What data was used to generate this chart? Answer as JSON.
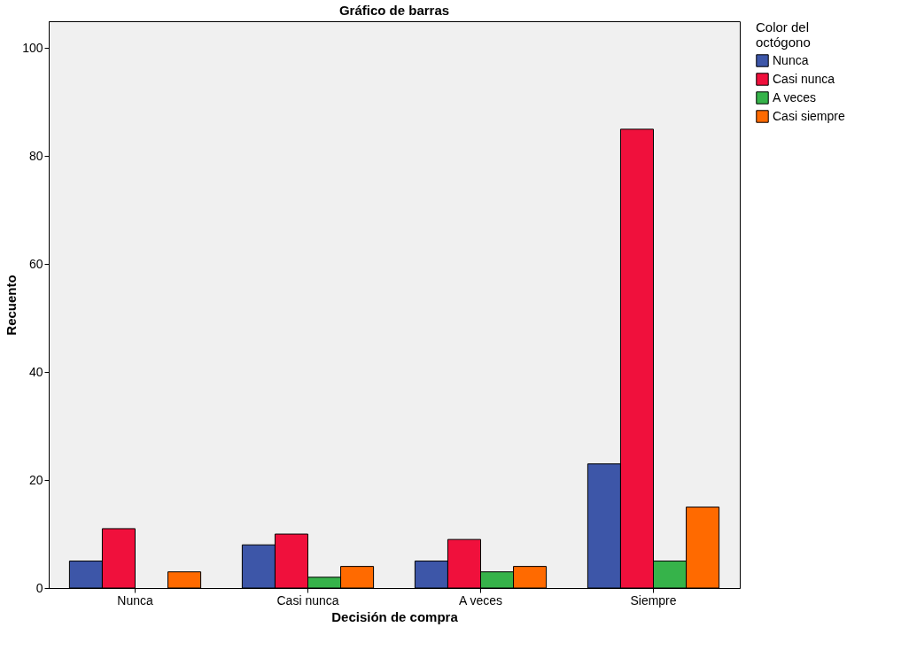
{
  "chart_data": {
    "type": "bar",
    "title": "Gráfico de barras",
    "xlabel": "Decisión de compra",
    "ylabel": "Recuento",
    "legend_title": "Color del octógono",
    "categories": [
      "Nunca",
      "Casi nunca",
      "A veces",
      "Siempre"
    ],
    "series": [
      {
        "name": "Nunca",
        "color": "#3d56a8",
        "values": [
          5,
          8,
          5,
          23
        ]
      },
      {
        "name": "Casi nunca",
        "color": "#f0103c",
        "values": [
          11,
          10,
          9,
          85
        ]
      },
      {
        "name": "A veces",
        "color": "#36b34a",
        "values": [
          null,
          2,
          3,
          5
        ]
      },
      {
        "name": "Casi siempre",
        "color": "#ff6a00",
        "values": [
          3,
          4,
          4,
          15
        ]
      }
    ],
    "ylim": [
      0,
      105
    ],
    "yticks": [
      0,
      20,
      40,
      60,
      80,
      100
    ],
    "grid": false,
    "legend": "top right"
  }
}
